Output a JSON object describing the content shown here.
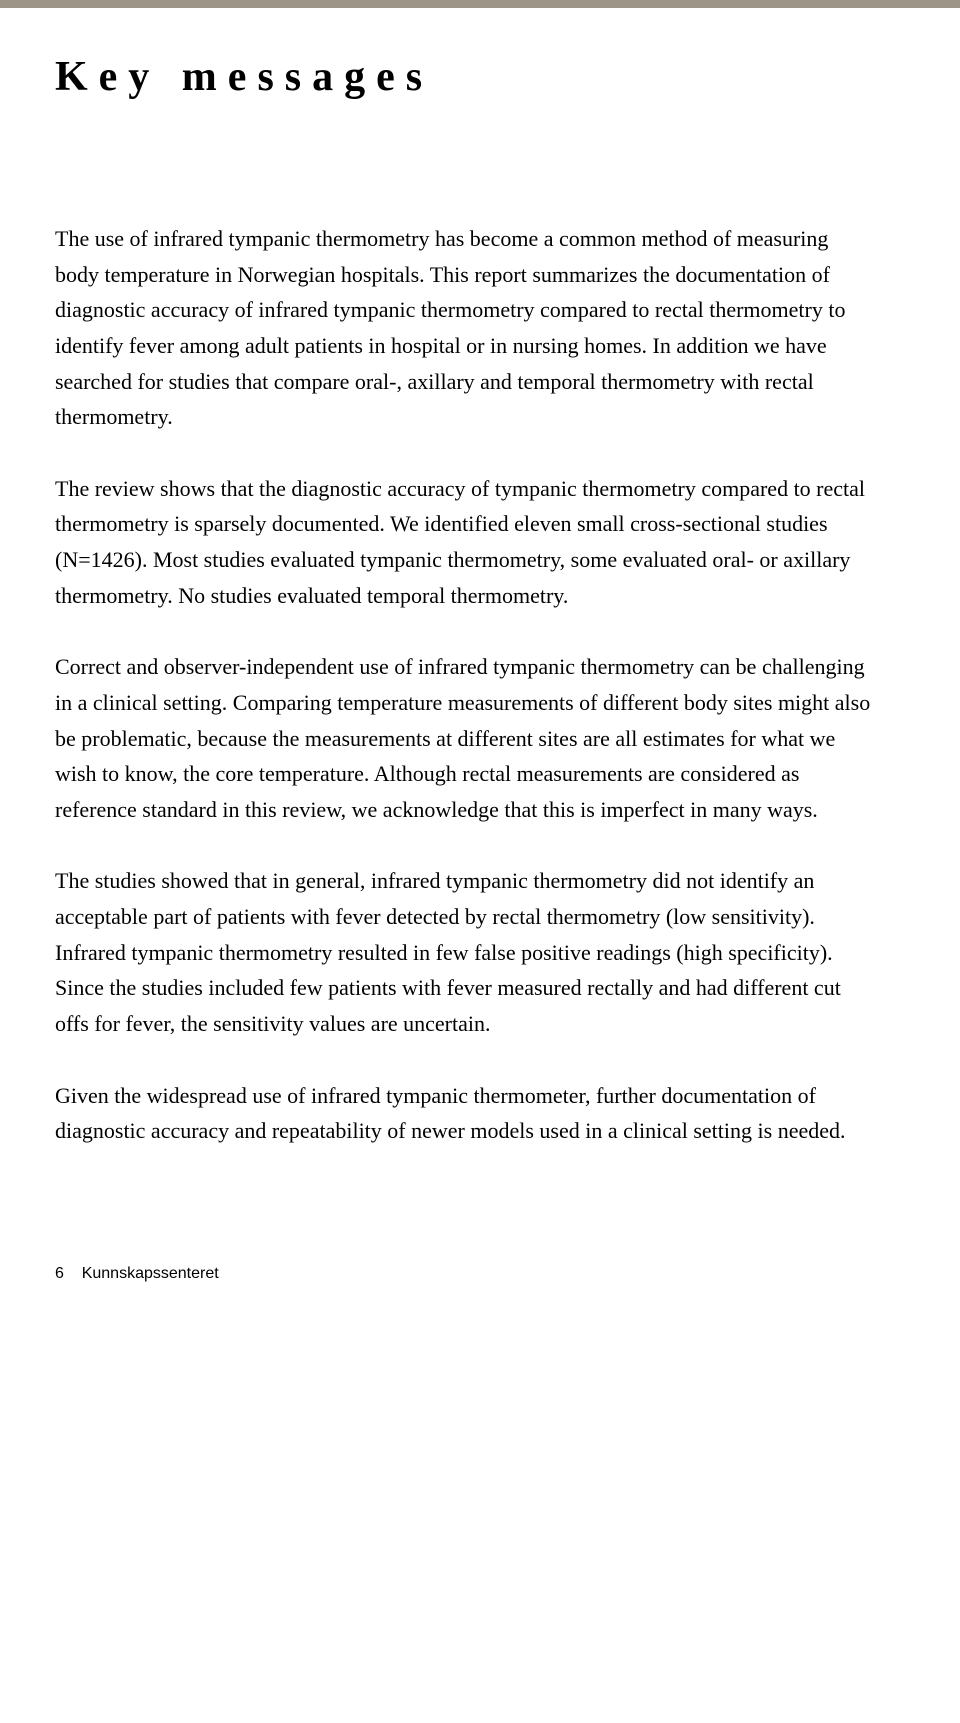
{
  "top_rule_color": "#9c9588",
  "section_title": "Key messages",
  "paragraphs": [
    "The use of infrared tympanic thermometry has become a common method of measuring body temperature in Norwegian hospitals. This report summarizes the documentation of diagnostic accuracy of infrared tympanic thermometry compared to rectal thermometry to identify fever among adult patients in hospital or in nursing homes. In addition we have searched for studies that compare oral-, axillary and temporal thermometry with rectal thermometry.",
    "The review shows that the diagnostic accuracy of tympanic thermometry compared to rectal thermometry is sparsely documented. We identified eleven small cross-sectional studies (N=1426). Most studies evaluated tympanic thermometry, some evaluated oral- or axillary thermometry. No studies evaluated temporal thermometry.",
    "Correct and observer-independent use of infrared tympanic thermometry can be challenging in a clinical setting. Comparing temperature measurements of different body sites might also be problematic, because the measurements at different sites are all estimates for what we wish to know, the core temperature. Although rectal measurements are considered as reference standard in this review, we acknowledge that this is imperfect in many ways.",
    "The studies showed that in general, infrared tympanic thermometry did not identify an acceptable part of patients with fever detected by rectal thermometry (low sensitivity). Infrared tympanic thermometry resulted in few false positive readings (high specificity). Since the studies included few patients with fever measured rectally and had different cut offs for fever, the sensitivity values are uncertain.",
    "Given the widespread use of infrared tympanic thermometer, further documentation of diagnostic accuracy and repeatability of newer models used in a clinical setting is needed."
  ],
  "footer": {
    "page_number": "6",
    "source_name": "Kunnskapssenteret"
  }
}
